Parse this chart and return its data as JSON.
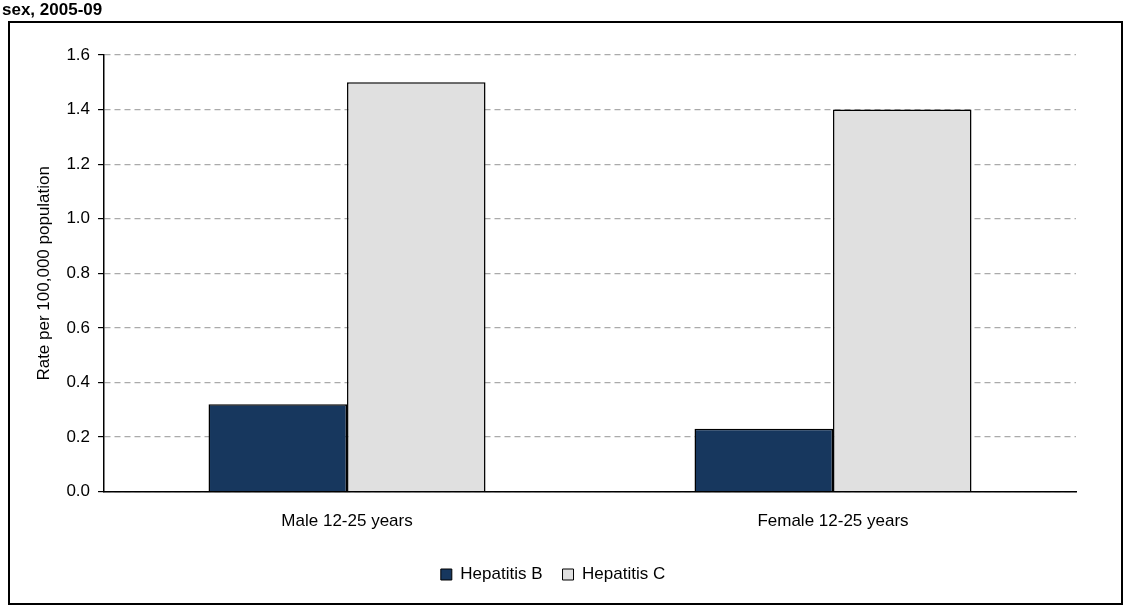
{
  "chart_data": {
    "type": "bar",
    "title": "sex, 2005-09",
    "ylabel": "Rate per 100,000 population",
    "categories": [
      "Male 12-25 years",
      "Female 12-25 years"
    ],
    "series": [
      {
        "name": "Hepatitis B",
        "color": "#17375e",
        "values": [
          0.32,
          0.23
        ]
      },
      {
        "name": "Hepatitis C",
        "color": "#e0e0e0",
        "values": [
          1.5,
          1.4
        ]
      }
    ],
    "ylim": [
      0,
      1.6
    ],
    "yticks": [
      {
        "value": 0,
        "label": "0.0"
      },
      {
        "value": 0.2,
        "label": "0.2"
      },
      {
        "value": 0.4,
        "label": "0.4"
      },
      {
        "value": 0.6,
        "label": "0.6"
      },
      {
        "value": 0.8,
        "label": "0.8"
      },
      {
        "value": 1,
        "label": "1.0"
      },
      {
        "value": 1.2,
        "label": "1.2"
      },
      {
        "value": 1.4,
        "label": "1.4"
      },
      {
        "value": 1.6,
        "label": "1.6"
      }
    ],
    "grid": "y",
    "legend": "bottom"
  }
}
